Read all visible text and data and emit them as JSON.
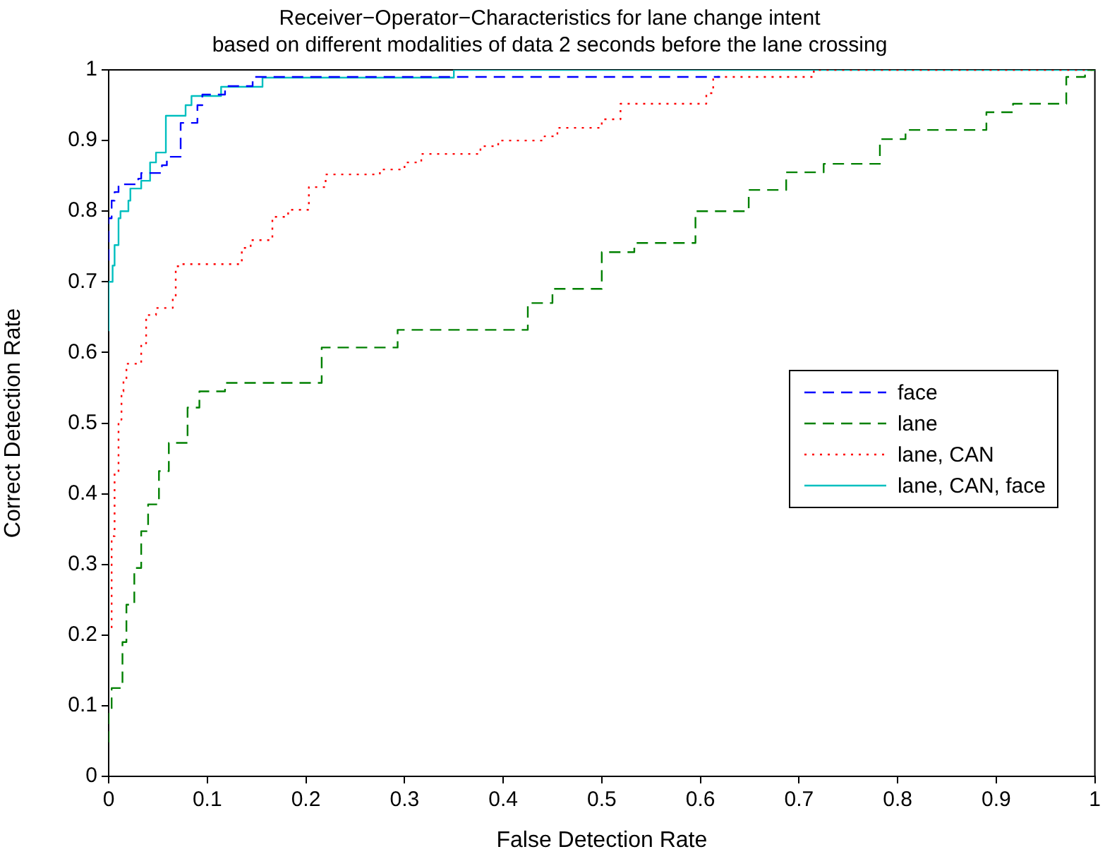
{
  "chart_data": {
    "type": "step",
    "title": "Receiver−Operator−Characteristics for lane change intent\nbased on different modalities of data 2 seconds before the lane crossing",
    "xlabel": "False Detection Rate",
    "ylabel": "Correct Detection Rate",
    "xlim": [
      0,
      1
    ],
    "ylim": [
      0,
      1
    ],
    "xticks": [
      0,
      0.1,
      0.2,
      0.3,
      0.4,
      0.5,
      0.6,
      0.7,
      0.8,
      0.9,
      1
    ],
    "yticks": [
      0,
      0.1,
      0.2,
      0.3,
      0.4,
      0.5,
      0.6,
      0.7,
      0.8,
      0.9,
      1
    ],
    "grid": false,
    "legend": "right",
    "marker": "none",
    "series": [
      {
        "name": "face",
        "color": "#0000ff",
        "line_style": "dashed",
        "x": [
          0,
          0.003,
          0.006,
          0.01,
          0.03,
          0.033,
          0.054,
          0.059,
          0.073,
          0.09,
          0.095,
          0.118,
          0.146,
          0.286,
          0.62
        ],
        "values": [
          0.73,
          0.79,
          0.815,
          0.827,
          0.838,
          0.846,
          0.854,
          0.865,
          0.877,
          0.925,
          0.95,
          0.965,
          0.977,
          0.99,
          0.99
        ]
      },
      {
        "name": "lane",
        "color": "#008000",
        "line_style": "dashed",
        "x": [
          0,
          0.003,
          0.014,
          0.018,
          0.026,
          0.033,
          0.04,
          0.051,
          0.061,
          0.08,
          0.092,
          0.118,
          0.216,
          0.293,
          0.425,
          0.45,
          0.5,
          0.533,
          0.595,
          0.649,
          0.687,
          0.725,
          0.782,
          0.808,
          0.89,
          0.917,
          0.971,
          0.99,
          1
        ],
        "values": [
          0.048,
          0.09,
          0.125,
          0.19,
          0.243,
          0.295,
          0.347,
          0.385,
          0.432,
          0.472,
          0.522,
          0.545,
          0.557,
          0.607,
          0.632,
          0.67,
          0.69,
          0.742,
          0.755,
          0.8,
          0.83,
          0.855,
          0.867,
          0.902,
          0.915,
          0.94,
          0.952,
          0.99,
          1
        ]
      },
      {
        "name": "lane, CAN",
        "color": "#ff0000",
        "line_style": "dotted",
        "x": [
          0.003,
          0.006,
          0.01,
          0.013,
          0.015,
          0.018,
          0.033,
          0.038,
          0.048,
          0.065,
          0.068,
          0.072,
          0.135,
          0.144,
          0.166,
          0.182,
          0.203,
          0.22,
          0.275,
          0.3,
          0.317,
          0.377,
          0.395,
          0.442,
          0.455,
          0.5,
          0.519,
          0.606,
          0.613,
          0.715,
          1
        ],
        "values": [
          0.21,
          0.34,
          0.43,
          0.505,
          0.545,
          0.56,
          0.584,
          0.613,
          0.653,
          0.663,
          0.676,
          0.722,
          0.725,
          0.748,
          0.759,
          0.792,
          0.802,
          0.834,
          0.852,
          0.859,
          0.869,
          0.881,
          0.892,
          0.9,
          0.906,
          0.918,
          0.93,
          0.952,
          0.967,
          0.99,
          1
        ]
      },
      {
        "name": "lane, CAN, face",
        "color": "#00bfbf",
        "line_style": "solid",
        "x": [
          0,
          0,
          0.004,
          0.006,
          0.01,
          0.012,
          0.02,
          0.022,
          0.033,
          0.042,
          0.048,
          0.058,
          0.078,
          0.084,
          0.114,
          0.156,
          0.35,
          0.549,
          1
        ],
        "values": [
          0.63,
          0.634,
          0.7,
          0.723,
          0.752,
          0.79,
          0.8,
          0.815,
          0.832,
          0.843,
          0.869,
          0.883,
          0.935,
          0.95,
          0.963,
          0.976,
          0.989,
          1,
          1
        ]
      }
    ]
  }
}
